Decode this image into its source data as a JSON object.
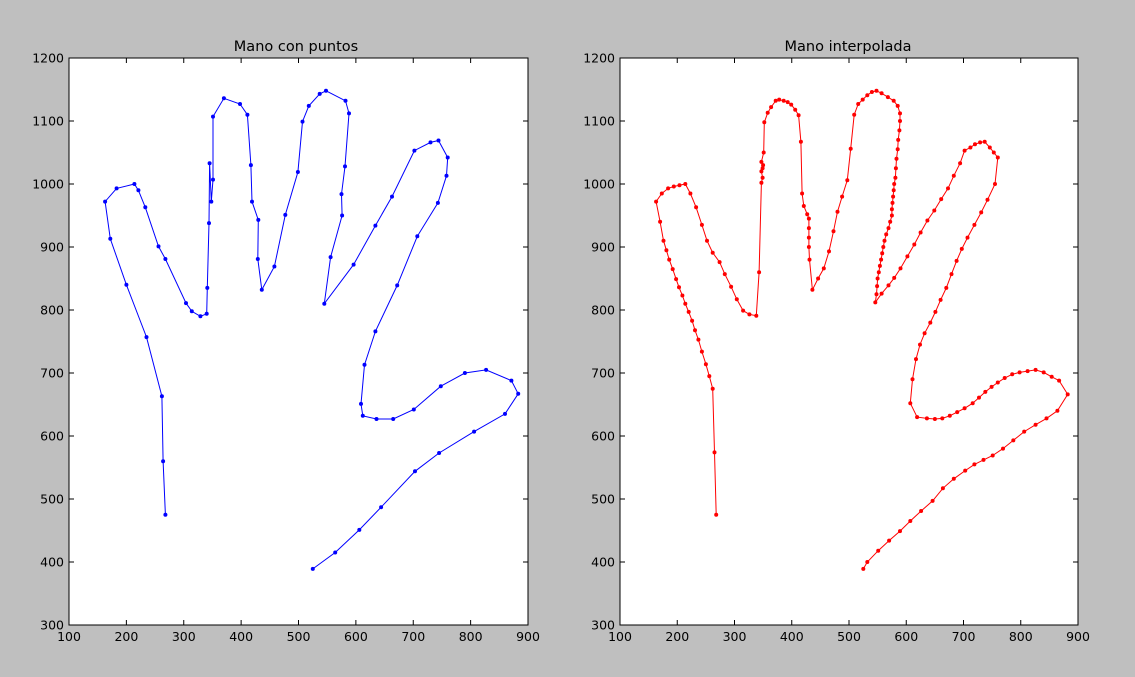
{
  "figure": {
    "background": "#bfbfbf"
  },
  "chart_data": [
    {
      "type": "line",
      "title": "Mano con puntos",
      "xlabel": "",
      "ylabel": "",
      "xlim": [
        100,
        900
      ],
      "ylim": [
        300,
        1200
      ],
      "xticks": [
        "100",
        "200",
        "300",
        "400",
        "500",
        "600",
        "700",
        "800",
        "900"
      ],
      "yticks": [
        "300",
        "400",
        "500",
        "600",
        "700",
        "800",
        "900",
        "1000",
        "1100",
        "1200"
      ],
      "grid": false,
      "series": [
        {
          "color": "#0000ff",
          "marker": "dot",
          "points": [
            [
              268,
              475
            ],
            [
              264,
              560
            ],
            [
              262,
              663
            ],
            [
              235,
              757
            ],
            [
              200,
              840
            ],
            [
              172,
              913
            ],
            [
              163,
              972
            ],
            [
              183,
              993
            ],
            [
              214,
              1000
            ],
            [
              221,
              990
            ],
            [
              233,
              963
            ],
            [
              256,
              901
            ],
            [
              268,
              881
            ],
            [
              304,
              811
            ],
            [
              314,
              798
            ],
            [
              329,
              790
            ],
            [
              340,
              794
            ],
            [
              341,
              835
            ],
            [
              344,
              938
            ],
            [
              345,
              1033
            ],
            [
              348,
              972
            ],
            [
              351,
              1007
            ],
            [
              351,
              1107
            ],
            [
              370,
              1136
            ],
            [
              398,
              1127
            ],
            [
              411,
              1110
            ],
            [
              417,
              1030
            ],
            [
              419,
              972
            ],
            [
              430,
              943
            ],
            [
              429,
              881
            ],
            [
              436,
              832
            ],
            [
              458,
              869
            ],
            [
              477,
              951
            ],
            [
              499,
              1019
            ],
            [
              507,
              1099
            ],
            [
              518,
              1124
            ],
            [
              537,
              1143
            ],
            [
              548,
              1148
            ],
            [
              582,
              1132
            ],
            [
              588,
              1112
            ],
            [
              581,
              1028
            ],
            [
              575,
              984
            ],
            [
              576,
              950
            ],
            [
              556,
              884
            ],
            [
              545,
              810
            ],
            [
              596,
              872
            ],
            [
              634,
              934
            ],
            [
              663,
              980
            ],
            [
              702,
              1053
            ],
            [
              730,
              1066
            ],
            [
              744,
              1069
            ],
            [
              760,
              1042
            ],
            [
              758,
              1013
            ],
            [
              743,
              970
            ],
            [
              707,
              917
            ],
            [
              672,
              839
            ],
            [
              634,
              766
            ],
            [
              615,
              713
            ],
            [
              609,
              651
            ],
            [
              612,
              632
            ],
            [
              636,
              627
            ],
            [
              665,
              627
            ],
            [
              701,
              642
            ],
            [
              748,
              679
            ],
            [
              790,
              700
            ],
            [
              827,
              705
            ],
            [
              871,
              688
            ],
            [
              883,
              667
            ],
            [
              860,
              635
            ],
            [
              806,
              607
            ],
            [
              745,
              573
            ],
            [
              703,
              544
            ],
            [
              644,
              487
            ],
            [
              606,
              451
            ],
            [
              564,
              415
            ],
            [
              525,
              389
            ]
          ]
        }
      ]
    },
    {
      "type": "line",
      "title": "Mano interpolada",
      "xlabel": "",
      "ylabel": "",
      "xlim": [
        100,
        900
      ],
      "ylim": [
        300,
        1200
      ],
      "xticks": [
        "100",
        "200",
        "300",
        "400",
        "500",
        "600",
        "700",
        "800",
        "900"
      ],
      "yticks": [
        "300",
        "400",
        "500",
        "600",
        "700",
        "800",
        "900",
        "1000",
        "1100",
        "1200"
      ],
      "grid": false,
      "series": [
        {
          "color": "#ff0000",
          "marker": "dot",
          "points": [
            [
              268,
              475
            ],
            [
              265,
              574
            ],
            [
              262,
              675
            ],
            [
              256,
              695
            ],
            [
              250,
              714
            ],
            [
              243,
              734
            ],
            [
              237,
              753
            ],
            [
              231,
              768
            ],
            [
              226,
              783
            ],
            [
              220,
              797
            ],
            [
              214,
              810
            ],
            [
              209,
              823
            ],
            [
              203,
              836
            ],
            [
              198,
              849
            ],
            [
              192,
              865
            ],
            [
              186,
              880
            ],
            [
              181,
              895
            ],
            [
              176,
              910
            ],
            [
              170,
              940
            ],
            [
              163,
              972
            ],
            [
              173,
              985
            ],
            [
              184,
              993
            ],
            [
              194,
              996
            ],
            [
              204,
              998
            ],
            [
              214,
              1000
            ],
            [
              223,
              985
            ],
            [
              233,
              963
            ],
            [
              243,
              935
            ],
            [
              252,
              910
            ],
            [
              262,
              891
            ],
            [
              274,
              876
            ],
            [
              283,
              857
            ],
            [
              294,
              837
            ],
            [
              304,
              817
            ],
            [
              315,
              799
            ],
            [
              326,
              793
            ],
            [
              338,
              791
            ],
            [
              343,
              860
            ],
            [
              347,
              1002
            ],
            [
              349,
              1010
            ],
            [
              347,
              1020
            ],
            [
              349,
              1025
            ],
            [
              350,
              1030
            ],
            [
              347,
              1035
            ],
            [
              351,
              1050
            ],
            [
              352,
              1098
            ],
            [
              358,
              1113
            ],
            [
              364,
              1122
            ],
            [
              372,
              1132
            ],
            [
              378,
              1134
            ],
            [
              386,
              1132
            ],
            [
              393,
              1130
            ],
            [
              399,
              1126
            ],
            [
              406,
              1118
            ],
            [
              412,
              1109
            ],
            [
              416,
              1067
            ],
            [
              418,
              985
            ],
            [
              421,
              965
            ],
            [
              427,
              952
            ],
            [
              430,
              945
            ],
            [
              430,
              930
            ],
            [
              430,
              915
            ],
            [
              430,
              900
            ],
            [
              431,
              880
            ],
            [
              436,
              832
            ],
            [
              446,
              850
            ],
            [
              456,
              866
            ],
            [
              465,
              893
            ],
            [
              473,
              925
            ],
            [
              480,
              956
            ],
            [
              488,
              980
            ],
            [
              497,
              1006
            ],
            [
              503,
              1056
            ],
            [
              509,
              1110
            ],
            [
              516,
              1127
            ],
            [
              524,
              1134
            ],
            [
              532,
              1141
            ],
            [
              540,
              1146
            ],
            [
              548,
              1148
            ],
            [
              557,
              1144
            ],
            [
              568,
              1138
            ],
            [
              578,
              1132
            ],
            [
              585,
              1124
            ],
            [
              589,
              1112
            ],
            [
              589,
              1100
            ],
            [
              588,
              1085
            ],
            [
              586,
              1070
            ],
            [
              585,
              1055
            ],
            [
              583,
              1040
            ],
            [
              582,
              1025
            ],
            [
              581,
              1010
            ],
            [
              579,
              1000
            ],
            [
              578,
              990
            ],
            [
              577,
              980
            ],
            [
              576,
              970
            ],
            [
              575,
              960
            ],
            [
              575,
              950
            ],
            [
              572,
              940
            ],
            [
              569,
              930
            ],
            [
              565,
              920
            ],
            [
              562,
              910
            ],
            [
              560,
              900
            ],
            [
              558,
              890
            ],
            [
              556,
              880
            ],
            [
              554,
              870
            ],
            [
              552,
              860
            ],
            [
              550,
              850
            ],
            [
              549,
              838
            ],
            [
              548,
              825
            ],
            [
              546,
              812
            ],
            [
              557,
              826
            ],
            [
              569,
              839
            ],
            [
              579,
              851
            ],
            [
              590,
              866
            ],
            [
              602,
              885
            ],
            [
              614,
              904
            ],
            [
              625,
              923
            ],
            [
              637,
              942
            ],
            [
              649,
              958
            ],
            [
              661,
              976
            ],
            [
              673,
              993
            ],
            [
              683,
              1013
            ],
            [
              694,
              1033
            ],
            [
              702,
              1053
            ],
            [
              712,
              1058
            ],
            [
              720,
              1063
            ],
            [
              729,
              1066
            ],
            [
              737,
              1067
            ],
            [
              746,
              1058
            ],
            [
              753,
              1050
            ],
            [
              760,
              1042
            ],
            [
              755,
              1000
            ],
            [
              742,
              975
            ],
            [
              731,
              955
            ],
            [
              719,
              935
            ],
            [
              707,
              915
            ],
            [
              697,
              897
            ],
            [
              688,
              878
            ],
            [
              679,
              857
            ],
            [
              670,
              835
            ],
            [
              660,
              816
            ],
            [
              651,
              797
            ],
            [
              642,
              780
            ],
            [
              632,
              763
            ],
            [
              624,
              745
            ],
            [
              617,
              722
            ],
            [
              611,
              690
            ],
            [
              607,
              652
            ],
            [
              619,
              630
            ],
            [
              636,
              628
            ],
            [
              650,
              627
            ],
            [
              663,
              628
            ],
            [
              676,
              632
            ],
            [
              689,
              638
            ],
            [
              702,
              644
            ],
            [
              716,
              652
            ],
            [
              727,
              661
            ],
            [
              738,
              670
            ],
            [
              749,
              678
            ],
            [
              760,
              685
            ],
            [
              772,
              692
            ],
            [
              785,
              698
            ],
            [
              798,
              701
            ],
            [
              812,
              703
            ],
            [
              826,
              705
            ],
            [
              840,
              701
            ],
            [
              854,
              694
            ],
            [
              867,
              688
            ],
            [
              882,
              666
            ],
            [
              864,
              640
            ],
            [
              845,
              628
            ],
            [
              826,
              618
            ],
            [
              806,
              607
            ],
            [
              787,
              593
            ],
            [
              769,
              580
            ],
            [
              751,
              569
            ],
            [
              735,
              562
            ],
            [
              719,
              555
            ],
            [
              703,
              545
            ],
            [
              683,
              532
            ],
            [
              664,
              517
            ],
            [
              646,
              497
            ],
            [
              626,
              481
            ],
            [
              607,
              465
            ],
            [
              589,
              449
            ],
            [
              570,
              434
            ],
            [
              551,
              418
            ],
            [
              532,
              400
            ],
            [
              525,
              389
            ]
          ]
        }
      ]
    }
  ]
}
